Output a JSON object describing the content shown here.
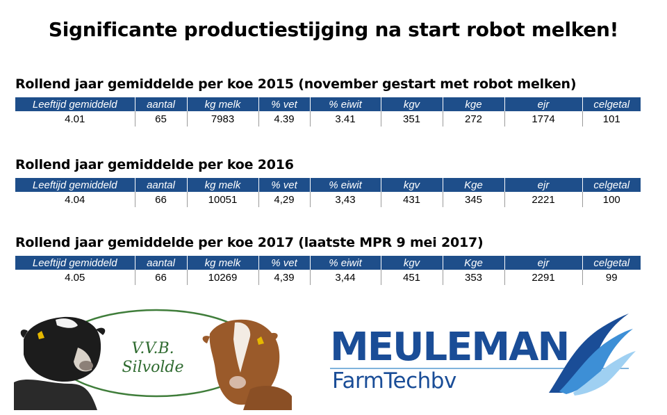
{
  "title": "Significante productiestijging na start robot melken!",
  "headers": [
    "Leeftijd gemiddeld",
    "aantal",
    "kg melk",
    "% vet",
    "% eiwit",
    "kgv",
    "kge",
    "ejr",
    "celgetal"
  ],
  "sections": [
    {
      "title": "Rollend jaar gemiddelde per koe 2015 (november gestart met robot melken)",
      "headers": [
        "Leeftijd gemiddeld",
        "aantal",
        "kg melk",
        "% vet",
        "% eiwit",
        "kgv",
        "kge",
        "ejr",
        "celgetal"
      ],
      "values": [
        "4.01",
        "65",
        "7983",
        "4.39",
        "3.41",
        "351",
        "272",
        "1774",
        "101"
      ]
    },
    {
      "title": "Rollend jaar gemiddelde per koe 2016",
      "headers": [
        "Leeftijd gemiddeld",
        "aantal",
        "kg melk",
        "% vet",
        "% eiwit",
        "kgv",
        "Kge",
        "ejr",
        "celgetal"
      ],
      "values": [
        "4.04",
        "66",
        "10051",
        "4,29",
        "3,43",
        "431",
        "345",
        "2221",
        "100"
      ]
    },
    {
      "title": "Rollend jaar gemiddelde per koe 2017 (laatste MPR 9 mei 2017)",
      "headers": [
        "Leeftijd gemiddeld",
        "aantal",
        "kg melk",
        "% vet",
        "% eiwit",
        "kgv",
        "Kge",
        "ejr",
        "celgetal"
      ],
      "values": [
        "4.05",
        "66",
        "10269",
        "4,39",
        "3,44",
        "451",
        "353",
        "2291",
        "99"
      ]
    }
  ],
  "logos": {
    "club_line1": "V.V.B.",
    "club_line2": "Silvolde",
    "company_name": "MEULEMAN",
    "company_sub": "FarmTechbv"
  },
  "colors": {
    "header_bg": "#1e4e8a",
    "brand_blue": "#1a4d97",
    "club_green": "#2f6b30"
  }
}
